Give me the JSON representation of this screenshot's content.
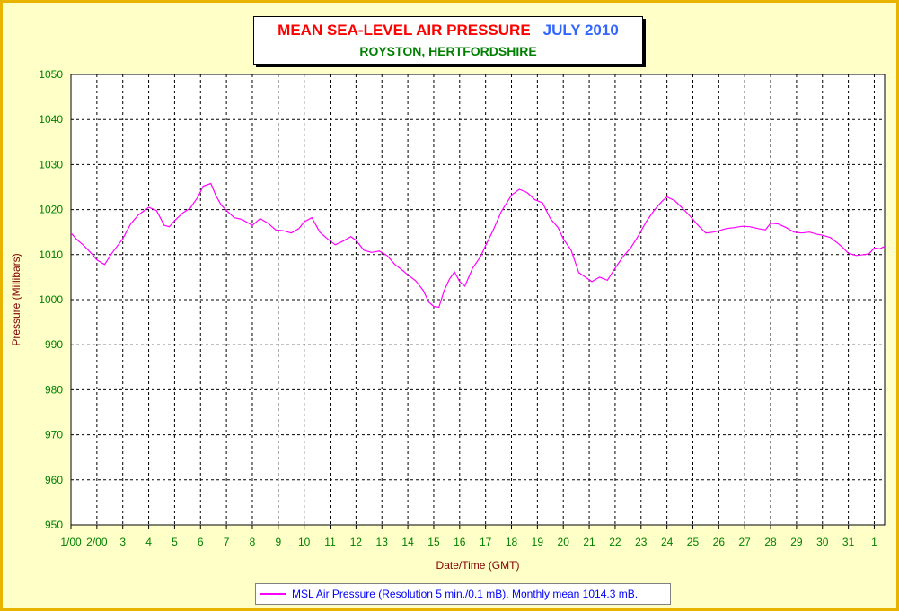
{
  "title": {
    "main": "MEAN SEA-LEVEL AIR PRESSURE",
    "month": "JULY 2010",
    "subtitle": "ROYSTON, HERTFORDSHIRE"
  },
  "legend": {
    "label": "MSL Air Pressure (Resolution 5 min./0.1 mB). Monthly mean 1014.3 mB."
  },
  "colors": {
    "background": "#ffffc8",
    "border": "#e8b400",
    "series": "#ff00ff",
    "tick_text": "#008000",
    "axis_label": "#800000"
  },
  "chart_data": {
    "type": "line",
    "xlabel": "Date/Time (GMT)",
    "ylabel": "Pressure (Millibars)",
    "ylim": [
      950,
      1050
    ],
    "yticks": [
      950,
      960,
      970,
      980,
      990,
      1000,
      1010,
      1020,
      1030,
      1040,
      1050
    ],
    "xlim": [
      1,
      32.4
    ],
    "xtick_positions": [
      1,
      2,
      3,
      4,
      5,
      6,
      7,
      8,
      9,
      10,
      11,
      12,
      13,
      14,
      15,
      16,
      17,
      18,
      19,
      20,
      21,
      22,
      23,
      24,
      25,
      26,
      27,
      28,
      29,
      30,
      31,
      32
    ],
    "xtick_labels": [
      "1/00",
      "2/00",
      "3",
      "4",
      "5",
      "6",
      "7",
      "8",
      "9",
      "10",
      "11",
      "12",
      "13",
      "14",
      "15",
      "16",
      "17",
      "18",
      "19",
      "20",
      "21",
      "22",
      "23",
      "24",
      "25",
      "26",
      "27",
      "28",
      "29",
      "30",
      "31",
      "1"
    ],
    "grid": true,
    "series": [
      {
        "name": "MSL Air Pressure",
        "color": "#ff00ff",
        "x": [
          1.0,
          1.2,
          1.5,
          1.8,
          2.0,
          2.3,
          2.6,
          3.0,
          3.3,
          3.6,
          4.0,
          4.3,
          4.6,
          4.8,
          5.0,
          5.3,
          5.6,
          5.9,
          6.1,
          6.4,
          6.6,
          6.8,
          7.0,
          7.3,
          7.6,
          8.0,
          8.3,
          8.6,
          8.9,
          9.2,
          9.5,
          9.8,
          10.0,
          10.3,
          10.6,
          10.9,
          11.2,
          11.5,
          11.8,
          12.0,
          12.3,
          12.6,
          12.9,
          13.2,
          13.5,
          13.8,
          14.0,
          14.3,
          14.6,
          14.8,
          15.0,
          15.2,
          15.4,
          15.6,
          15.8,
          16.0,
          16.2,
          16.5,
          16.8,
          17.0,
          17.3,
          17.6,
          18.0,
          18.3,
          18.6,
          18.9,
          19.2,
          19.5,
          19.8,
          20.0,
          20.3,
          20.6,
          20.9,
          21.1,
          21.4,
          21.7,
          22.0,
          22.3,
          22.6,
          22.9,
          23.2,
          23.5,
          23.8,
          24.0,
          24.3,
          24.6,
          24.9,
          25.2,
          25.5,
          25.8,
          26.0,
          26.3,
          26.6,
          26.9,
          27.2,
          27.5,
          27.8,
          28.0,
          28.3,
          28.6,
          28.9,
          29.2,
          29.5,
          29.8,
          30.0,
          30.3,
          30.6,
          30.8,
          31.0,
          31.3,
          31.6,
          31.8,
          32.0,
          32.2,
          32.4
        ],
        "y": [
          1014.8,
          1013.5,
          1012.0,
          1010.2,
          1008.8,
          1007.8,
          1010.5,
          1013.5,
          1016.8,
          1018.8,
          1020.5,
          1019.8,
          1016.5,
          1016.2,
          1017.5,
          1019.2,
          1020.3,
          1022.8,
          1025.2,
          1025.8,
          1023.0,
          1021.0,
          1019.8,
          1018.2,
          1017.8,
          1016.5,
          1018.0,
          1017.0,
          1015.5,
          1015.3,
          1014.8,
          1015.8,
          1017.3,
          1018.2,
          1015.0,
          1013.5,
          1012.2,
          1013.0,
          1014.0,
          1013.2,
          1011.0,
          1010.5,
          1010.8,
          1009.8,
          1007.8,
          1006.5,
          1005.5,
          1004.2,
          1002.0,
          999.5,
          998.5,
          998.3,
          1002.0,
          1004.5,
          1006.2,
          1004.0,
          1003.0,
          1007.0,
          1009.5,
          1012.0,
          1015.5,
          1019.5,
          1023.2,
          1024.5,
          1023.8,
          1022.2,
          1021.5,
          1018.0,
          1016.0,
          1013.5,
          1011.0,
          1006.0,
          1004.8,
          1004.0,
          1005.0,
          1004.3,
          1007.0,
          1009.5,
          1011.5,
          1014.2,
          1017.3,
          1019.8,
          1021.8,
          1022.8,
          1022.0,
          1020.3,
          1018.5,
          1016.5,
          1014.8,
          1015.0,
          1015.3,
          1015.8,
          1016.0,
          1016.3,
          1016.2,
          1015.8,
          1015.5,
          1017.0,
          1016.8,
          1016.0,
          1015.0,
          1014.8,
          1015.0,
          1014.5,
          1014.3,
          1013.8,
          1012.5,
          1011.5,
          1010.3,
          1009.8,
          1010.0,
          1010.2,
          1011.5,
          1011.3,
          1011.8
        ]
      }
    ]
  }
}
